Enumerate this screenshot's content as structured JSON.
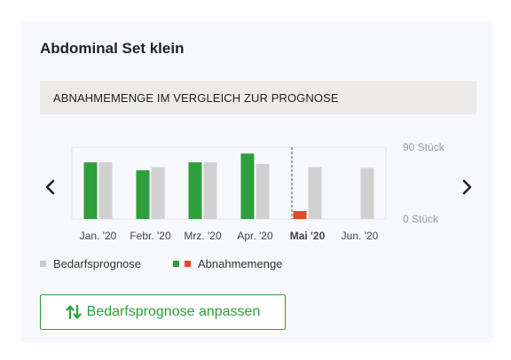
{
  "card": {
    "title": "Abdominal Set klein"
  },
  "section": {
    "heading": "ABNAHMEMENGE IM VERGLEICH ZUR PROGNOSE"
  },
  "navigation": {
    "prev_icon": "chevron-left-icon",
    "next_icon": "chevron-right-icon"
  },
  "chart_data": {
    "type": "bar",
    "categories": [
      "Jan. '20",
      "Febr. '20",
      "Mrz. '20",
      "Apr. '20",
      "Mai '20",
      "Jun. '20"
    ],
    "highlighted_category": "Mai '20",
    "series": [
      {
        "name": "Abnahmemenge",
        "values": [
          71,
          61,
          71,
          82,
          10,
          null
        ]
      },
      {
        "name": "Bedarfsprognose",
        "values": [
          71,
          65,
          71,
          69,
          65,
          64
        ]
      }
    ],
    "ylim": [
      0,
      90
    ],
    "y_tick_labels": [
      "90 Stück",
      "0 Stück"
    ],
    "current_marker_category": "Mai '20",
    "grid": false,
    "legend_placement": "bottom-left"
  },
  "legend": {
    "items": [
      {
        "label": "Bedarfsprognose",
        "colors": [
          "#cccccc"
        ]
      },
      {
        "label": "Abnahmemenge",
        "colors": [
          "#2f9e3c",
          "#e04a24"
        ]
      }
    ]
  },
  "colors": {
    "consumption": "#2f9e3c",
    "consumption_current": "#e04a24",
    "forecast": "#d0d0d0",
    "accent": "#2f9e3c"
  },
  "actions": {
    "adjust_button_label": "Bedarfsprognose anpassen",
    "adjust_button_icon": "sort-arrows-icon"
  }
}
